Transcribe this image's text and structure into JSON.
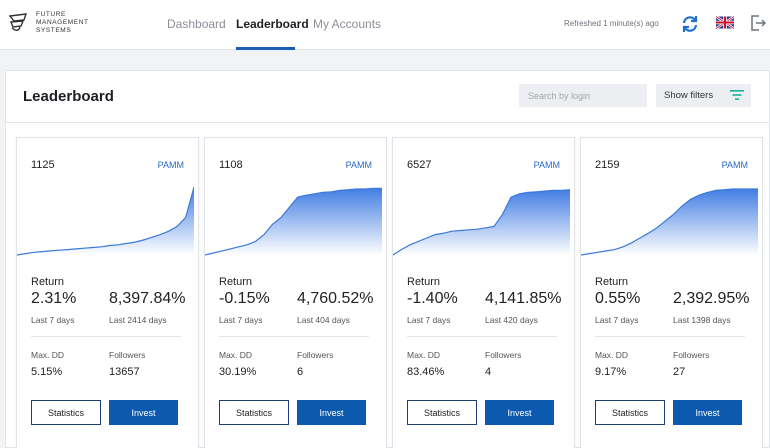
{
  "logo": {
    "lines": [
      "FUTURE",
      "MANAGEMENT",
      "SYSTEMS"
    ],
    "icon": "fms-logo-icon"
  },
  "nav": {
    "items": [
      {
        "label": "Dashboard",
        "active": false
      },
      {
        "label": "Leaderboard",
        "active": true
      },
      {
        "label": "My Accounts",
        "active": false
      }
    ],
    "refreshed": "Refreshed 1 minute(s) ago",
    "icons": [
      "refresh-icon",
      "uk-flag-icon",
      "logout-icon"
    ]
  },
  "header": {
    "title": "Leaderboard",
    "search_placeholder": "Search by login",
    "filters_label": "Show filters",
    "filter_icon": "filter-icon"
  },
  "colors": {
    "accent": "#0c5ab0",
    "chart": "#4a87e0",
    "filter_icon": "#18b39a"
  },
  "cards": [
    {
      "id": "1125",
      "type": "PAMM",
      "return_label": "Return",
      "return_7d": "2.31%",
      "return_7d_label": "Last 7 days",
      "return_all": "8,397.84%",
      "return_all_label": "Last 2414 days",
      "dd_label": "Max. DD",
      "dd": "5.15%",
      "followers_label": "Followers",
      "followers": "13657",
      "statistics_label": "Statistics",
      "invest_label": "Invest",
      "trend": [
        0.0,
        0.02,
        0.04,
        0.05,
        0.06,
        0.07,
        0.08,
        0.09,
        0.1,
        0.11,
        0.12,
        0.14,
        0.15,
        0.17,
        0.19,
        0.22,
        0.26,
        0.3,
        0.35,
        0.42,
        0.55,
        1.0
      ]
    },
    {
      "id": "1108",
      "type": "PAMM",
      "return_label": "Return",
      "return_7d": "-0.15%",
      "return_7d_label": "Last 7 days",
      "return_all": "4,760.52%",
      "return_all_label": "Last 404 days",
      "dd_label": "Max. DD",
      "dd": "30.19%",
      "followers_label": "Followers",
      "followers": "6",
      "statistics_label": "Statistics",
      "invest_label": "Invest",
      "trend": [
        0.0,
        0.03,
        0.06,
        0.09,
        0.12,
        0.15,
        0.2,
        0.3,
        0.45,
        0.55,
        0.7,
        0.85,
        0.88,
        0.9,
        0.92,
        0.93,
        0.95,
        0.96,
        0.97,
        0.97,
        0.98,
        0.98
      ]
    },
    {
      "id": "6527",
      "type": "PAMM",
      "return_label": "Return",
      "return_7d": "-1.40%",
      "return_7d_label": "Last 7 days",
      "return_all": "4,141.85%",
      "return_all_label": "Last 420 days",
      "dd_label": "Max. DD",
      "dd": "83.46%",
      "followers_label": "Followers",
      "followers": "4",
      "statistics_label": "Statistics",
      "invest_label": "Invest",
      "trend": [
        0.0,
        0.08,
        0.15,
        0.2,
        0.25,
        0.3,
        0.32,
        0.35,
        0.36,
        0.37,
        0.38,
        0.4,
        0.42,
        0.6,
        0.85,
        0.9,
        0.92,
        0.93,
        0.94,
        0.95,
        0.95,
        0.96
      ]
    },
    {
      "id": "2159",
      "type": "PAMM",
      "return_label": "Return",
      "return_7d": "0.55%",
      "return_7d_label": "Last 7 days",
      "return_all": "2,392.95%",
      "return_all_label": "Last 1398 days",
      "dd_label": "Max. DD",
      "dd": "9.17%",
      "followers_label": "Followers",
      "followers": "27",
      "statistics_label": "Statistics",
      "invest_label": "Invest",
      "trend": [
        0.0,
        0.02,
        0.04,
        0.06,
        0.08,
        0.12,
        0.18,
        0.25,
        0.32,
        0.4,
        0.5,
        0.6,
        0.72,
        0.82,
        0.88,
        0.92,
        0.95,
        0.96,
        0.97,
        0.97,
        0.97,
        0.97
      ]
    }
  ]
}
